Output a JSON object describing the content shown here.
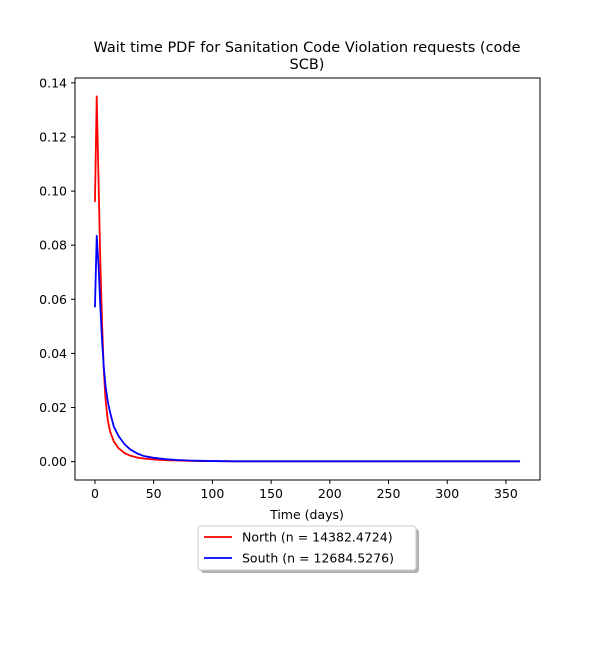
{
  "chart_data": {
    "type": "line",
    "title_line1": "Wait time PDF for Sanitation Code Violation  requests (code",
    "title_line2": "SCB)",
    "xlabel": "Time (days)",
    "ylabel": "",
    "xlim": [
      -17,
      379
    ],
    "ylim": [
      -0.0068,
      0.1418
    ],
    "xticks": [
      0,
      50,
      100,
      150,
      200,
      250,
      300,
      350
    ],
    "xtick_labels": [
      "0",
      "50",
      "100",
      "150",
      "200",
      "250",
      "300",
      "350"
    ],
    "yticks": [
      0.0,
      0.02,
      0.04,
      0.06,
      0.08,
      0.1,
      0.12,
      0.14
    ],
    "ytick_labels": [
      "0.00",
      "0.02",
      "0.04",
      "0.06",
      "0.08",
      "0.10",
      "0.12",
      "0.14"
    ],
    "grid": false,
    "legend_placement": "below-center",
    "series": [
      {
        "name": "North (n = 14382.4724)",
        "color": "#ff0000",
        "x": [
          0,
          1.5,
          3,
          4.5,
          6,
          7.5,
          9,
          11,
          13,
          16,
          20,
          25,
          30,
          36,
          42,
          50,
          60,
          70,
          80,
          90,
          100,
          120,
          150,
          200,
          250,
          300,
          362
        ],
        "y": [
          0.096,
          0.135,
          0.105,
          0.075,
          0.052,
          0.034,
          0.023,
          0.015,
          0.011,
          0.0075,
          0.005,
          0.0032,
          0.0022,
          0.0015,
          0.0011,
          0.0008,
          0.0005,
          0.0004,
          0.0003,
          0.0002,
          0.0002,
          0.0001,
          0.0001,
          0.0001,
          0.0001,
          0.0001,
          0.0001
        ]
      },
      {
        "name": "South (n = 12684.5276)",
        "color": "#0000ff",
        "x": [
          0,
          1.5,
          3,
          4.5,
          6,
          7.5,
          9,
          11,
          13,
          16,
          20,
          25,
          30,
          36,
          42,
          50,
          60,
          70,
          80,
          90,
          100,
          120,
          150,
          200,
          250,
          300,
          362
        ],
        "y": [
          0.057,
          0.0835,
          0.073,
          0.058,
          0.045,
          0.035,
          0.028,
          0.022,
          0.018,
          0.013,
          0.0095,
          0.0065,
          0.0045,
          0.003,
          0.002,
          0.0014,
          0.0009,
          0.0006,
          0.0004,
          0.0003,
          0.0002,
          0.0001,
          0.0001,
          0.0001,
          0.0001,
          0.0001,
          0.0001
        ]
      }
    ]
  }
}
